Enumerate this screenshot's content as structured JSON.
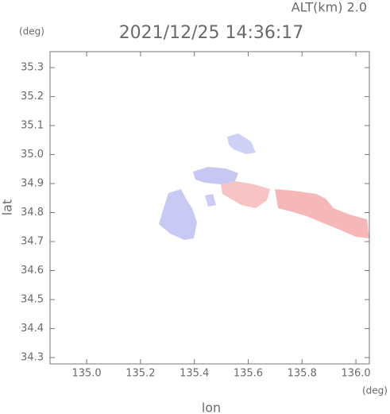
{
  "chart_data": {
    "type": "map",
    "title": "2021/12/25 14:36:17",
    "subtitle": "ALT(km) 2.0",
    "y_unit": "(deg)",
    "x_unit": "(deg)",
    "xlabel": "lon",
    "ylabel": "lat",
    "xlim": [
      134.864,
      136.05
    ],
    "ylim": [
      34.278,
      35.355
    ],
    "xticks": [
      {
        "value": 135.0,
        "label": "135.0"
      },
      135.2,
      135.4,
      135.6,
      135.8,
      {
        "value": 136.0,
        "label": "136.0"
      }
    ],
    "yticks": [
      34.3,
      34.4,
      34.5,
      34.6,
      34.7,
      34.8,
      34.9,
      {
        "value": 35.0,
        "label": "35.0"
      },
      35.1,
      35.2,
      35.3
    ],
    "grid": false
  }
}
